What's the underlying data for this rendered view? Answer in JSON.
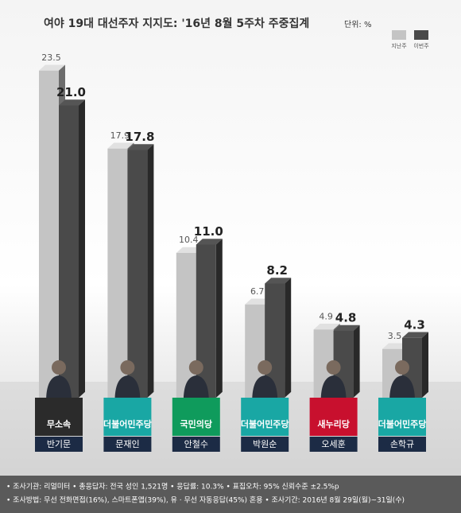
{
  "chart_data": {
    "type": "bar",
    "title": "여야 19대 대선주자 지지도: '16년 8월 5주차 주중집계",
    "unit_label": "단위: %",
    "categories": [
      "반기문",
      "문재인",
      "안철수",
      "박원순",
      "오세훈",
      "손학규"
    ],
    "parties": [
      "무소속",
      "더불어민주당",
      "국민의당",
      "더불어민주당",
      "새누리당",
      "더불어민주당"
    ],
    "party_colors": [
      "#2b2b2b",
      "#19a7a4",
      "#0f9b5c",
      "#19a7a4",
      "#c8102e",
      "#19a7a4"
    ],
    "series": [
      {
        "name": "지난주",
        "color": "#c4c4c4",
        "values": [
          23.5,
          17.9,
          10.4,
          6.7,
          4.9,
          3.5
        ],
        "value_labels": [
          "23.5",
          "17.9",
          "10.4",
          "6.7",
          "4.9",
          "3.5"
        ]
      },
      {
        "name": "이번주",
        "color": "#4a4a4a",
        "values": [
          21.0,
          17.8,
          11.0,
          8.2,
          4.8,
          4.3
        ],
        "value_labels": [
          "21.0",
          "17.8",
          "11.0",
          "8.2",
          "4.8",
          "4.3"
        ]
      }
    ],
    "notes": [
      "• 조사기관: 리얼미터 • 총응답자: 전국 성인 1,521명 • 응답률: 10.3% • 표집오차: 95% 신뢰수준 ±2.5%p",
      "• 조사방법: 무선 전화면접(16%), 스마트폰앱(39%), 유 · 무선 자동응답(45%) 혼용 • 조사기간: 2016년 8월 29일(월)~31일(수)"
    ]
  }
}
